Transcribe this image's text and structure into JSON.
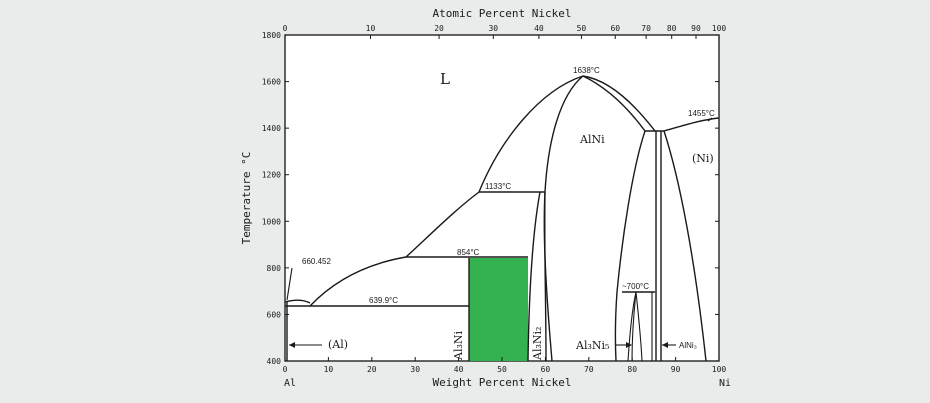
{
  "diagram": {
    "top_axis_title": "Atomic Percent Nickel",
    "bottom_axis_title": "Weight Percent Nickel",
    "y_axis_title": "Temperature °C",
    "left_element": "Al",
    "right_element": "Ni",
    "bottom_ticks": [
      "0",
      "10",
      "20",
      "30",
      "40",
      "50",
      "60",
      "70",
      "80",
      "90",
      "100"
    ],
    "top_ticks": [
      "0",
      "10",
      "20",
      "30",
      "40",
      "50",
      "60",
      "70",
      "80",
      "90",
      "100"
    ],
    "y_ticks": [
      "400",
      "600",
      "800",
      "1000",
      "1200",
      "1400",
      "1600",
      "1800"
    ],
    "highlight_color": "#33b24f",
    "phases": {
      "liquid": "L",
      "alni": "AlNi",
      "ni": "(Ni)",
      "al": "(Al)",
      "al3ni": "Al₃Ni",
      "al3ni2": "Al₃Ni₂",
      "al3ni5": "Al₃Ni₅",
      "alni3": "AlNi₃"
    },
    "annotations": {
      "t1638": "1638°C",
      "t1455": "1455°C",
      "t1133": "1133°C",
      "t854": "854°C",
      "t660": "660.452",
      "t639": "639.9°C",
      "t700": "~700°C"
    }
  }
}
